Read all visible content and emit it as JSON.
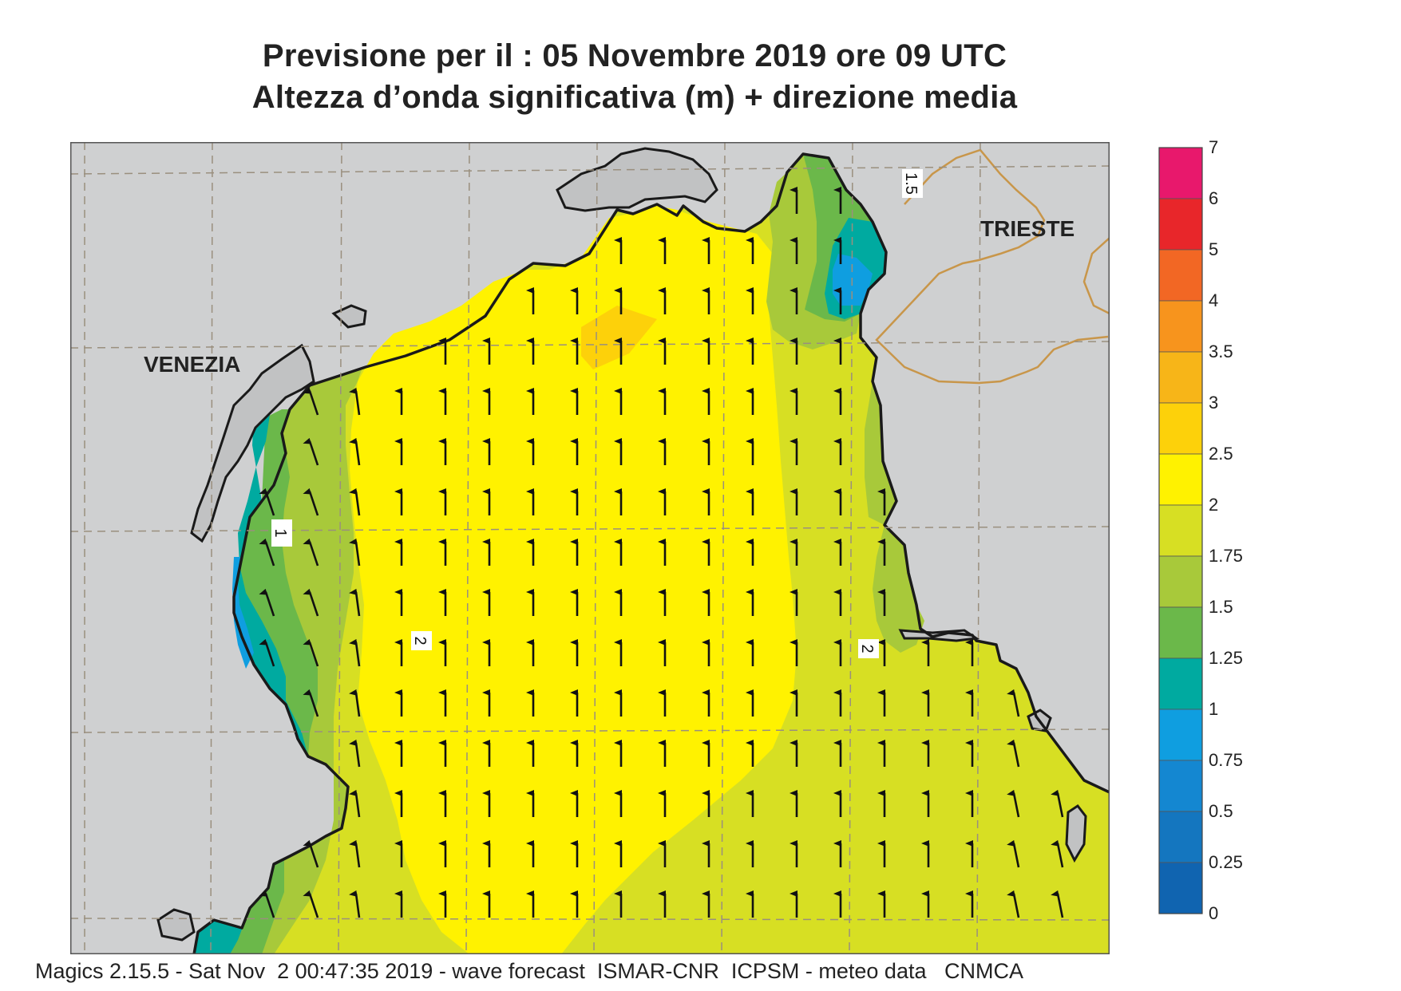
{
  "header": {
    "title_line1": "Previsione per il  :  05 Novembre  2019   ore 09 UTC",
    "title_line2": "Altezza d’onda significativa (m) + direzione media"
  },
  "map": {
    "labels": {
      "city_west": "VENEZIA",
      "city_east": "TRIESTE"
    },
    "contour_labels": [
      "1.5",
      "1",
      "2",
      "2"
    ],
    "colors": {
      "land": "#cfd0d1",
      "coast": "#1a1a1a",
      "grid": "#9a8f7e",
      "border": "#c8964a",
      "arrow": "#111111"
    },
    "wave_direction": "north (arrows point up across the basin)"
  },
  "legend": {
    "labels": [
      "7",
      "6",
      "5",
      "4",
      "3.5",
      "3",
      "2.5",
      "2",
      "1.75",
      "1.5",
      "1.25",
      "1",
      "0.75",
      "0.5",
      "0.25",
      "0"
    ],
    "colors": [
      "#e8186c",
      "#e8262a",
      "#f26724",
      "#f7941d",
      "#f7b518",
      "#fdd10a",
      "#fff200",
      "#d7df23",
      "#a8c93a",
      "#6bb84a",
      "#00aaa0",
      "#0f9ee0",
      "#1487d1",
      "#1476bf",
      "#1064b0"
    ]
  },
  "footer": {
    "credit": "Magics 2.15.5 - Sat Nov  2 00:47:35 2019 - wave forecast  ISMAR-CNR  ICPSM - meteo data   CNMCA"
  }
}
